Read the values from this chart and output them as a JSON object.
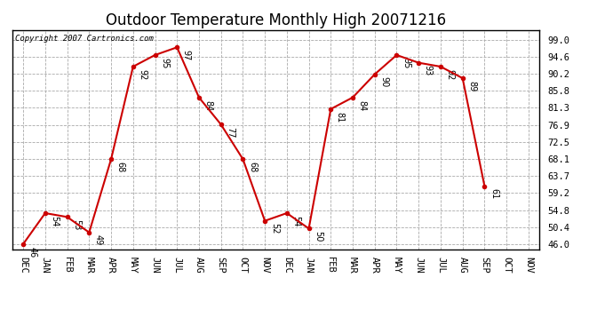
{
  "title": "Outdoor Temperature Monthly High 20071216",
  "copyright": "Copyright 2007 Cartronics.com",
  "x_labels": [
    "DEC",
    "JAN",
    "FEB",
    "MAR",
    "APR",
    "MAY",
    "JUN",
    "JUL",
    "AUG",
    "SEP",
    "OCT",
    "NOV",
    "DEC",
    "JAN",
    "FEB",
    "MAR",
    "APR",
    "MAY",
    "JUN",
    "JUL",
    "AUG",
    "SEP",
    "OCT",
    "NOV"
  ],
  "data_points": [
    {
      "label": "DEC",
      "value": 46
    },
    {
      "label": "JAN",
      "value": 54
    },
    {
      "label": "FEB",
      "value": 53
    },
    {
      "label": "MAR",
      "value": 49
    },
    {
      "label": "APR",
      "value": 68
    },
    {
      "label": "MAY",
      "value": 92
    },
    {
      "label": "JUN",
      "value": 95
    },
    {
      "label": "JUL",
      "value": 97
    },
    {
      "label": "AUG",
      "value": 84
    },
    {
      "label": "SEP",
      "value": 77
    },
    {
      "label": "OCT",
      "value": 68
    },
    {
      "label": "NOV",
      "value": 52
    },
    {
      "label": "DEC",
      "value": 54
    },
    {
      "label": "JAN",
      "value": 50
    },
    {
      "label": "FEB",
      "value": 81
    },
    {
      "label": "MAR",
      "value": 84
    },
    {
      "label": "APR",
      "value": 90
    },
    {
      "label": "MAY",
      "value": 95
    },
    {
      "label": "JUN",
      "value": 93
    },
    {
      "label": "JUL",
      "value": 92
    },
    {
      "label": "AUG",
      "value": 89
    },
    {
      "label": "SEP",
      "value": 61
    },
    {
      "label": "OCT",
      "value": null
    },
    {
      "label": "NOV",
      "value": null
    }
  ],
  "line_color": "#cc0000",
  "marker_color": "#cc0000",
  "background_color": "#ffffff",
  "grid_color": "#aaaaaa",
  "y_ticks": [
    46.0,
    50.4,
    54.8,
    59.2,
    63.7,
    68.1,
    72.5,
    76.9,
    81.3,
    85.8,
    90.2,
    94.6,
    99.0
  ],
  "y_min": 44.5,
  "y_max": 101.5,
  "title_fontsize": 12,
  "tick_fontsize": 7.5
}
